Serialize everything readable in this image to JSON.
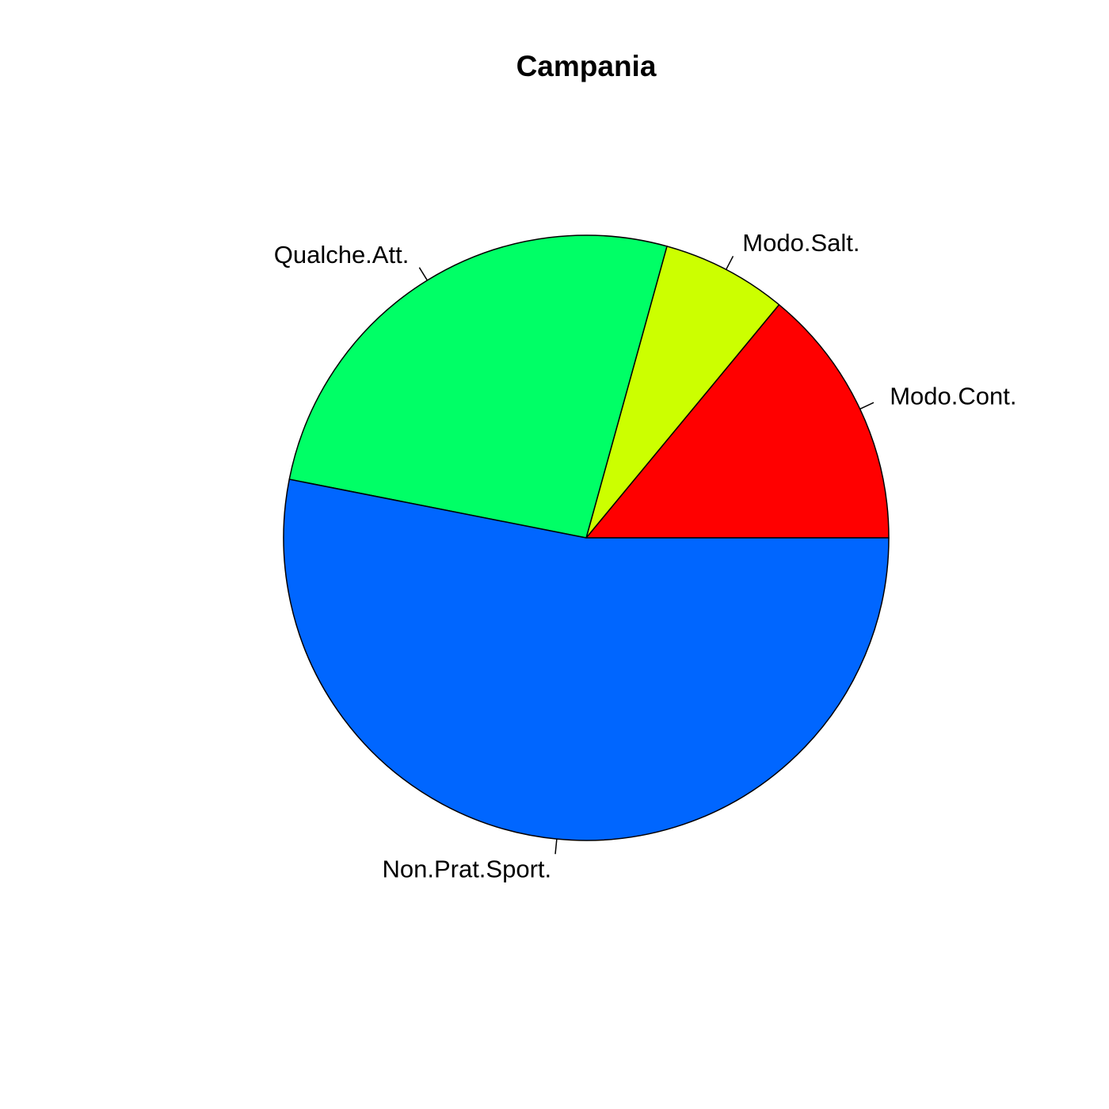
{
  "chart_data": {
    "type": "pie",
    "title": "Campania",
    "start_angle_deg": 0,
    "direction": "counterclockwise",
    "slices": [
      {
        "label": "Modo.Cont.",
        "value": 14.0,
        "color": "#FF0000"
      },
      {
        "label": "Modo.Salt.",
        "value": 6.7,
        "color": "#CCFF00"
      },
      {
        "label": "Qualche.Att.",
        "value": 26.2,
        "color": "#00FF66"
      },
      {
        "label": "Non.Prat.Sport.",
        "value": 53.1,
        "color": "#0066FF"
      }
    ]
  }
}
